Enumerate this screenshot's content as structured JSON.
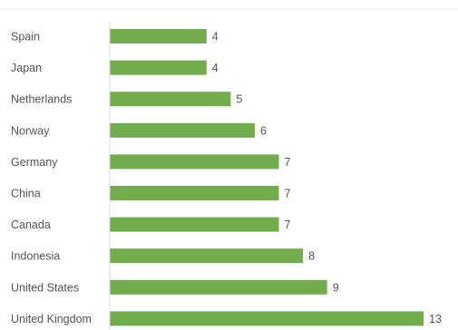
{
  "chart_data": {
    "type": "bar",
    "orientation": "horizontal",
    "categories": [
      "Spain",
      "Japan",
      "Netherlands",
      "Norway",
      "Germany",
      "China",
      "Canada",
      "Indonesia",
      "United States",
      "United Kingdom"
    ],
    "values": [
      4,
      4,
      5,
      6,
      7,
      7,
      7,
      8,
      9,
      13
    ],
    "title": "",
    "xlabel": "",
    "ylabel": "",
    "xlim": [
      0,
      13
    ],
    "grid": false,
    "legend": "none",
    "data_labels": true,
    "colors": {
      "bar": "#72ac4d",
      "axis": "#d9d9d9",
      "text": "#555555"
    }
  }
}
